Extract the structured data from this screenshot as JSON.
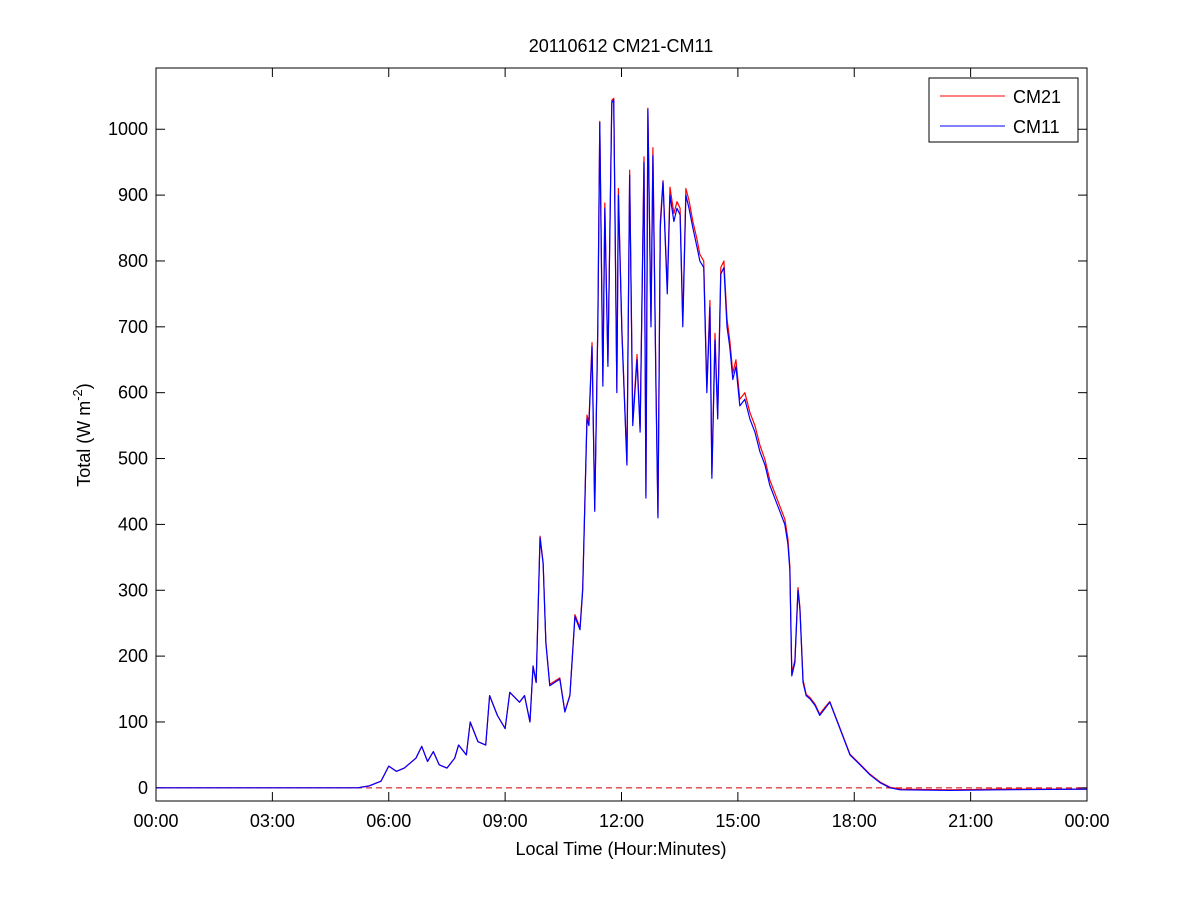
{
  "chart_data": {
    "type": "line",
    "title": "20110612 CM21-CM11",
    "xlabel": "Local Time (Hour:Minutes)",
    "ylabel": [
      "Total (W m",
      "-2",
      ")"
    ],
    "xlim": [
      0,
      24
    ],
    "xticks": [
      {
        "value": 0,
        "label": "00:00"
      },
      {
        "value": 3,
        "label": "03:00"
      },
      {
        "value": 6,
        "label": "06:00"
      },
      {
        "value": 9,
        "label": "09:00"
      },
      {
        "value": 12,
        "label": "12:00"
      },
      {
        "value": 15,
        "label": "15:00"
      },
      {
        "value": 18,
        "label": "18:00"
      },
      {
        "value": 21,
        "label": "21:00"
      },
      {
        "value": 24,
        "label": "00:00"
      }
    ],
    "ylim": [
      -20,
      1093
    ],
    "yticks": [
      0,
      100,
      200,
      300,
      400,
      500,
      600,
      700,
      800,
      900,
      1000
    ],
    "legend": "top-right",
    "reference_line": {
      "y": 0,
      "color": "#cc0000",
      "dashed": true
    },
    "x": [
      0,
      5.2,
      5.5,
      5.8,
      6.0,
      6.2,
      6.4,
      6.7,
      6.85,
      7.0,
      7.15,
      7.3,
      7.5,
      7.7,
      7.8,
      8.0,
      8.1,
      8.3,
      8.5,
      8.6,
      8.8,
      9.0,
      9.12,
      9.37,
      9.5,
      9.64,
      9.72,
      9.8,
      9.9,
      9.98,
      10.05,
      10.15,
      10.41,
      10.54,
      10.67,
      10.8,
      10.93,
      11.0,
      11.11,
      11.16,
      11.24,
      11.31,
      11.39,
      11.44,
      11.52,
      11.57,
      11.65,
      11.75,
      11.8,
      11.88,
      11.92,
      12.01,
      12.14,
      12.21,
      12.29,
      12.4,
      12.48,
      12.58,
      12.63,
      12.68,
      12.76,
      12.81,
      12.89,
      12.94,
      13.0,
      13.07,
      13.18,
      13.25,
      13.35,
      13.43,
      13.51,
      13.58,
      13.66,
      13.74,
      13.84,
      13.95,
      14.02,
      14.12,
      14.2,
      14.28,
      14.33,
      14.41,
      14.48,
      14.56,
      14.64,
      14.72,
      14.79,
      14.87,
      14.95,
      15.05,
      15.18,
      15.31,
      15.44,
      15.57,
      15.7,
      15.82,
      15.95,
      16.08,
      16.21,
      16.29,
      16.34,
      16.39,
      16.47,
      16.55,
      16.6,
      16.68,
      16.76,
      16.86,
      16.99,
      17.11,
      17.24,
      17.37,
      17.5,
      17.63,
      17.76,
      17.89,
      18.15,
      18.4,
      18.66,
      18.92,
      19.18,
      20.46,
      21.76,
      24
    ],
    "series": [
      {
        "name": "CM21",
        "color": "#ff0000",
        "values": [
          0,
          0,
          3,
          10,
          33,
          25,
          30,
          45,
          63,
          40,
          55,
          35,
          30,
          45,
          65,
          50,
          100,
          70,
          65,
          140,
          110,
          90,
          145,
          130,
          140,
          100,
          185,
          160,
          382,
          342,
          222,
          157,
          167,
          116,
          141,
          263,
          243,
          304,
          566,
          556,
          676,
          424,
          706,
          1012,
          616,
          888,
          646,
          1044,
          1047,
          606,
          910,
          696,
          494,
          938,
          556,
          658,
          546,
          958,
          444,
          1032,
          708,
          972,
          608,
          414,
          860,
          922,
          760,
          912,
          872,
          890,
          880,
          708,
          910,
          892,
          860,
          832,
          810,
          800,
          608,
          740,
          476,
          690,
          566,
          790,
          800,
          712,
          680,
          630,
          650,
          590,
          600,
          570,
          550,
          520,
          498,
          468,
          448,
          428,
          408,
          378,
          336,
          174,
          194,
          304,
          274,
          164,
          142,
          137,
          127,
          112,
          122,
          131,
          111,
          91,
          71,
          51,
          36,
          21,
          9,
          1,
          -2,
          -3,
          -2,
          -2
        ]
      },
      {
        "name": "CM11",
        "color": "#0000ff",
        "values": [
          0,
          0,
          3,
          10,
          33,
          25,
          30,
          45,
          63,
          40,
          55,
          35,
          30,
          45,
          65,
          50,
          100,
          70,
          65,
          140,
          110,
          90,
          145,
          130,
          140,
          100,
          185,
          160,
          380,
          340,
          220,
          155,
          165,
          115,
          140,
          260,
          240,
          300,
          560,
          550,
          670,
          420,
          700,
          1010,
          610,
          880,
          640,
          1040,
          1045,
          600,
          900,
          690,
          490,
          930,
          550,
          650,
          540,
          950,
          440,
          1030,
          700,
          960,
          600,
          410,
          850,
          920,
          750,
          900,
          860,
          880,
          870,
          700,
          900,
          880,
          850,
          820,
          800,
          790,
          600,
          730,
          470,
          680,
          560,
          780,
          790,
          700,
          670,
          620,
          640,
          580,
          590,
          560,
          540,
          510,
          490,
          460,
          440,
          420,
          400,
          370,
          330,
          170,
          190,
          300,
          270,
          160,
          140,
          135,
          125,
          110,
          120,
          130,
          110,
          90,
          70,
          50,
          35,
          20,
          8,
          0,
          -3,
          -4,
          -3,
          -2
        ]
      }
    ]
  }
}
